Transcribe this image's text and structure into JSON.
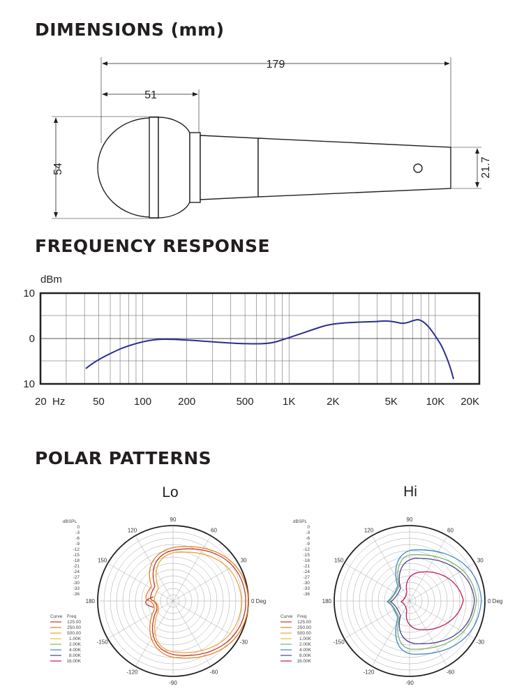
{
  "dimensions": {
    "title": "DIMENSIONS (mm)",
    "total_length": "179",
    "head_length": "51",
    "head_diameter": "54",
    "tail_diameter": "21.7"
  },
  "frequency_response": {
    "title": "FREQUENCY RESPONSE",
    "y_unit": "dBm",
    "y_ticks": [
      "10",
      "0",
      "10"
    ],
    "x_ticks": [
      "20  Hz",
      "50",
      "100",
      "200",
      "500",
      "1K",
      "2K",
      "5K",
      "10K",
      "20K"
    ],
    "curve_color": "#2b2e8f"
  },
  "polar_patterns": {
    "title": "POLAR PATTERNS",
    "charts": [
      {
        "title": "Lo",
        "db_label": "dBSPL",
        "db_values": [
          "0",
          "-3",
          "-6",
          "-9",
          "-12",
          "-15",
          "-18",
          "-21",
          "-24",
          "-27",
          "-30",
          "-33",
          "-36"
        ],
        "angles": [
          "90",
          "60",
          "30",
          "0 Deg",
          "-30",
          "-60",
          "-90",
          "-120",
          "-150",
          "180",
          "150",
          "120"
        ],
        "legend_headers": [
          "Curve",
          "Freq"
        ],
        "legend": [
          {
            "freq": "125.00",
            "color": "#c0392b"
          },
          {
            "freq": "250.00",
            "color": "#e67e22"
          },
          {
            "freq": "500.00",
            "color": "#f0a23c"
          },
          {
            "freq": "1.00K",
            "color": "#e6c229"
          },
          {
            "freq": "2.00K",
            "color": "#7fb069"
          },
          {
            "freq": "4.00K",
            "color": "#3a87c8"
          },
          {
            "freq": "8.00K",
            "color": "#4b3f8c"
          },
          {
            "freq": "16.00K",
            "color": "#c2185b"
          }
        ]
      },
      {
        "title": "Hi",
        "db_label": "dBSPL",
        "db_values": [
          "0",
          "-3",
          "-6",
          "-9",
          "-12",
          "-15",
          "-18",
          "-21",
          "-24",
          "-27",
          "-30",
          "-33",
          "-36"
        ],
        "angles": [
          "90",
          "60",
          "30",
          "0 Deg",
          "-30",
          "-60",
          "-90",
          "-120",
          "-150",
          "180",
          "150",
          "120"
        ],
        "legend_headers": [
          "Curve",
          "Freq"
        ],
        "legend": [
          {
            "freq": "125.00",
            "color": "#c0392b"
          },
          {
            "freq": "250.00",
            "color": "#e67e22"
          },
          {
            "freq": "500.00",
            "color": "#f0a23c"
          },
          {
            "freq": "1.00K",
            "color": "#e6c229"
          },
          {
            "freq": "2.00K",
            "color": "#7fb069"
          },
          {
            "freq": "4.00K",
            "color": "#3a87c8"
          },
          {
            "freq": "8.00K",
            "color": "#4b3f8c"
          },
          {
            "freq": "16.00K",
            "color": "#c2185b"
          }
        ]
      }
    ]
  }
}
